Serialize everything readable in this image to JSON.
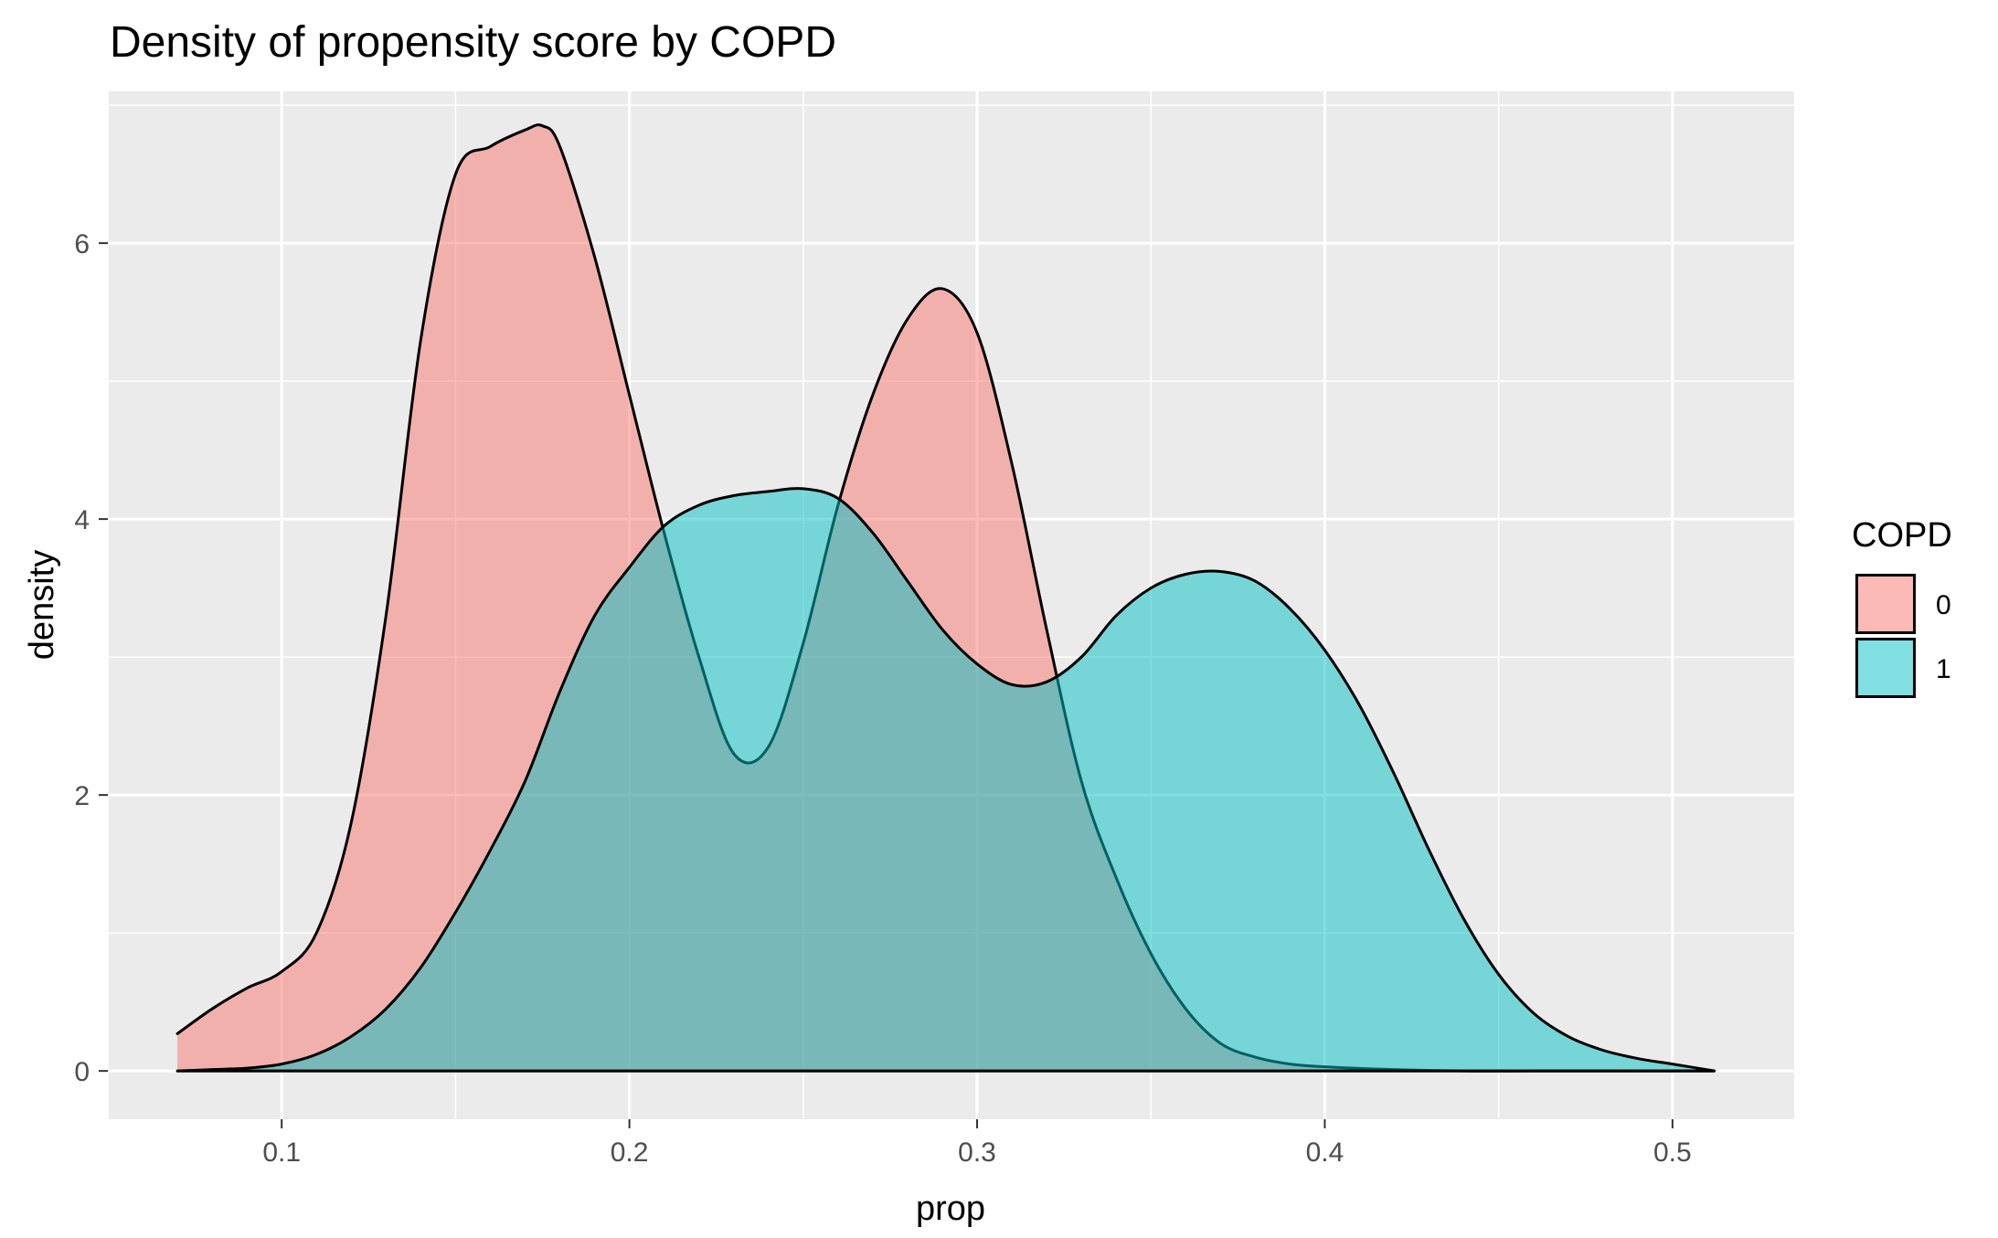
{
  "chart_data": {
    "type": "area",
    "title": "Density of propensity score by COPD",
    "xlabel": "prop",
    "ylabel": "density",
    "xlim": [
      0.05,
      0.535
    ],
    "ylim": [
      -0.35,
      7.1
    ],
    "x_ticks": [
      0.1,
      0.2,
      0.3,
      0.4,
      0.5
    ],
    "x_tick_labels": [
      "0.1",
      "0.2",
      "0.3",
      "0.4",
      "0.5"
    ],
    "y_ticks": [
      0,
      2,
      4,
      6
    ],
    "y_tick_labels": [
      "0",
      "2",
      "4",
      "6"
    ],
    "grid": true,
    "background": "#EBEBEB",
    "legend": {
      "title": "COPD",
      "position": "right"
    },
    "series": [
      {
        "name": "0",
        "color": "#F8766D",
        "fill_opacity": 0.5,
        "x": [
          0.07,
          0.08,
          0.09,
          0.1,
          0.11,
          0.12,
          0.13,
          0.14,
          0.15,
          0.16,
          0.17,
          0.175,
          0.18,
          0.19,
          0.2,
          0.21,
          0.22,
          0.23,
          0.24,
          0.25,
          0.26,
          0.27,
          0.28,
          0.29,
          0.3,
          0.31,
          0.32,
          0.33,
          0.34,
          0.35,
          0.36,
          0.37,
          0.38,
          0.39,
          0.4,
          0.42,
          0.44,
          0.46,
          0.48,
          0.5,
          0.512
        ],
        "y": [
          0.27,
          0.45,
          0.6,
          0.72,
          1.0,
          1.8,
          3.3,
          5.3,
          6.5,
          6.7,
          6.82,
          6.85,
          6.7,
          5.9,
          4.9,
          3.9,
          3.0,
          2.3,
          2.35,
          3.1,
          4.1,
          4.9,
          5.45,
          5.67,
          5.35,
          4.4,
          3.2,
          2.1,
          1.4,
          0.85,
          0.45,
          0.2,
          0.1,
          0.05,
          0.03,
          0.01,
          0.0,
          0.0,
          0.0,
          0.0,
          0.0
        ]
      },
      {
        "name": "1",
        "color": "#00BFC4",
        "fill_opacity": 0.5,
        "x": [
          0.07,
          0.08,
          0.09,
          0.1,
          0.11,
          0.12,
          0.13,
          0.14,
          0.15,
          0.16,
          0.17,
          0.18,
          0.19,
          0.2,
          0.21,
          0.22,
          0.23,
          0.24,
          0.25,
          0.26,
          0.27,
          0.28,
          0.29,
          0.3,
          0.31,
          0.32,
          0.33,
          0.34,
          0.35,
          0.36,
          0.37,
          0.38,
          0.39,
          0.4,
          0.41,
          0.42,
          0.43,
          0.44,
          0.45,
          0.46,
          0.47,
          0.48,
          0.49,
          0.5,
          0.512
        ],
        "y": [
          0.0,
          0.01,
          0.02,
          0.05,
          0.12,
          0.25,
          0.45,
          0.75,
          1.15,
          1.6,
          2.1,
          2.75,
          3.3,
          3.65,
          3.95,
          4.1,
          4.17,
          4.2,
          4.22,
          4.15,
          3.9,
          3.55,
          3.2,
          2.95,
          2.8,
          2.82,
          3.0,
          3.3,
          3.5,
          3.6,
          3.62,
          3.55,
          3.35,
          3.05,
          2.65,
          2.15,
          1.6,
          1.1,
          0.7,
          0.42,
          0.25,
          0.15,
          0.09,
          0.05,
          0.0
        ]
      }
    ]
  }
}
